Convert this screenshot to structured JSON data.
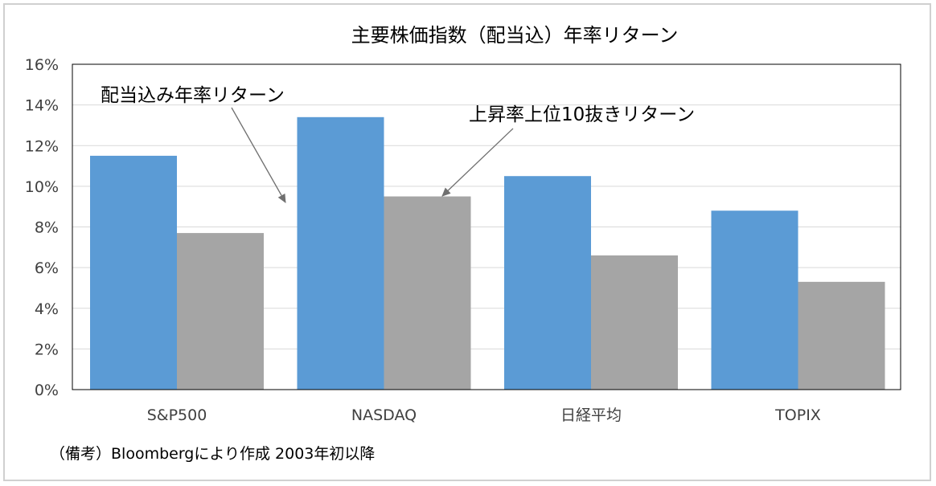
{
  "chart_data": {
    "type": "bar",
    "title": "主要株価指数（配当込）年率リターン",
    "categories": [
      "S&P500",
      "NASDAQ",
      "日経平均",
      "TOPIX"
    ],
    "series": [
      {
        "name": "配当込み年率リターン",
        "values": [
          11.5,
          13.4,
          10.5,
          8.8
        ],
        "color": "#5b9bd5"
      },
      {
        "name": "上昇率上位10抜きリターン",
        "values": [
          7.7,
          9.5,
          6.6,
          5.3
        ],
        "color": "#a5a5a5"
      }
    ],
    "ylim": [
      0,
      16
    ],
    "yticks": [
      "0%",
      "2%",
      "4%",
      "6%",
      "8%",
      "10%",
      "12%",
      "14%",
      "16%"
    ],
    "grid": true,
    "annotations": [
      "配当込み年率リターン",
      "上昇率上位10抜きリターン"
    ],
    "note": "（備考）Bloombergにより作成 2003年初以降"
  }
}
